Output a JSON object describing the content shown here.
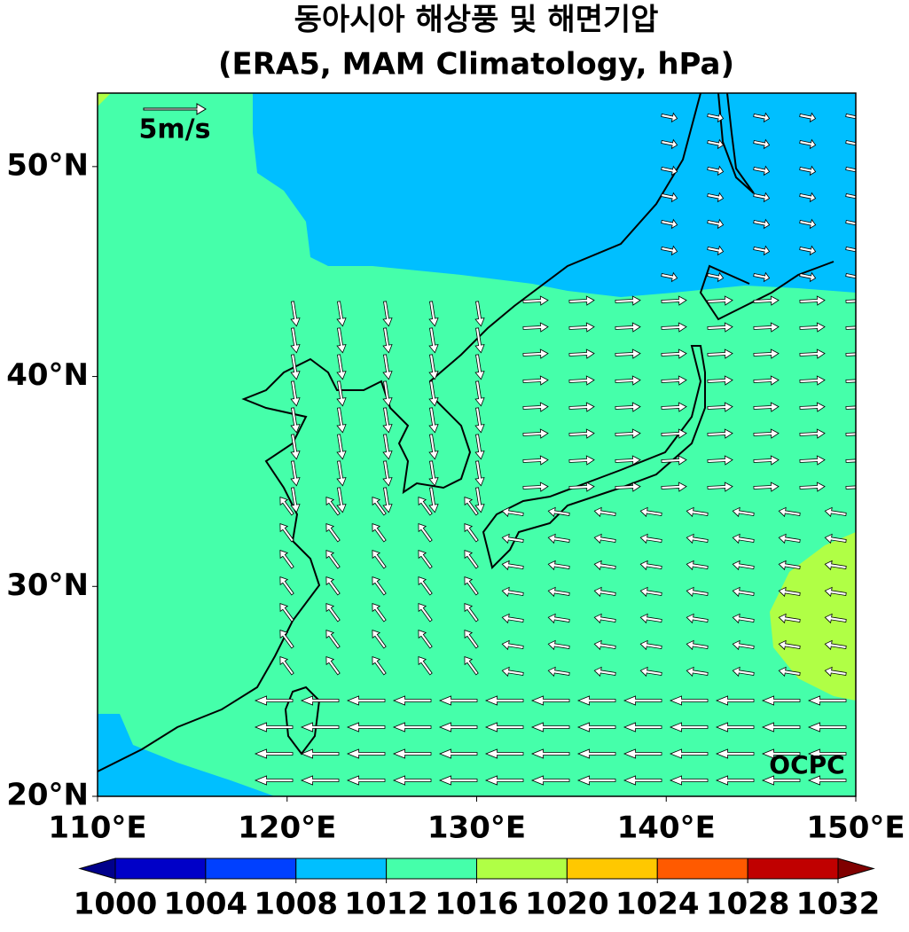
{
  "title": [
    "동아시아 해상풍 및 해면기압",
    "(ERA5, MAM Climatology, hPa)"
  ],
  "map": {
    "lonlim": [
      110,
      150
    ],
    "latlim": [
      20,
      53.5
    ],
    "lon_ticks": [
      {
        "value": 110,
        "label": "110°E"
      },
      {
        "value": 120,
        "label": "120°E"
      },
      {
        "value": 130,
        "label": "130°E"
      },
      {
        "value": 140,
        "label": "140°E"
      },
      {
        "value": 150,
        "label": "150°E"
      }
    ],
    "lat_ticks": [
      {
        "value": 20,
        "label": "20°N"
      },
      {
        "value": 30,
        "label": "30°N"
      },
      {
        "value": 40,
        "label": "40°N"
      },
      {
        "value": 50,
        "label": "50°N"
      }
    ],
    "reference_vector": "5m/s",
    "credit": "OCPC"
  },
  "colorbar": {
    "levels": [
      1000,
      1004,
      1008,
      1012,
      1016,
      1020,
      1024,
      1028,
      1032
    ],
    "colors": [
      "#0000c8",
      "#0040ff",
      "#00bfff",
      "#45ffaa",
      "#b0ff45",
      "#ffc800",
      "#ff5a00",
      "#c00000"
    ],
    "under_color": "#00008b",
    "over_color": "#800000"
  }
}
